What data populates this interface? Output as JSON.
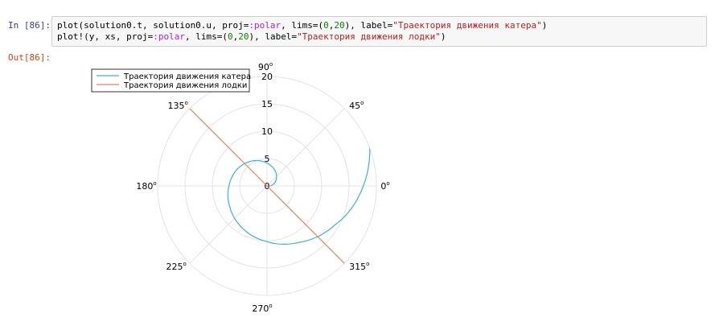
{
  "cell": {
    "in_prompt": "In [86]:",
    "out_prompt": "Out[86]:",
    "code_line1": {
      "a": "plot(solution0.t, solution0.u, proj=",
      "b": ":polar",
      "c": ", lims=(",
      "d": "0",
      "e": ",",
      "f": "20",
      "g": "), label=",
      "h": "\"Траектория движения катера\"",
      "i": ")"
    },
    "code_line2": {
      "a": "plot!(y, xs, proj=",
      "b": ":polar",
      "c": ", lims=(",
      "d": "0",
      "e": ",",
      "f": "20",
      "g": "), label=",
      "h": "\"Траектория движения лодки\"",
      "i": ")"
    }
  },
  "chart_data": {
    "type": "line",
    "projection": "polar",
    "rlim": [
      0,
      20
    ],
    "r_ticks": [
      "0",
      "5",
      "10",
      "15",
      "20"
    ],
    "angle_ticks": [
      "0",
      "45",
      "90",
      "135",
      "180",
      "225",
      "270",
      "315"
    ],
    "angle_unit_symbol": "o",
    "grid": true,
    "legend_position": "top-left",
    "series": [
      {
        "name": "Траектория движения катера",
        "color": "#3db1e0",
        "theta_deg": [
          0,
          30,
          60,
          90,
          120,
          150,
          180,
          210,
          240,
          270,
          300,
          330,
          360,
          390
        ],
        "r": [
          0.56,
          1.85,
          3.08,
          4.17,
          5.3,
          6.25,
          6.96,
          7.83,
          8.93,
          10.17,
          11.89,
          14.3,
          17.6,
          21.2
        ]
      },
      {
        "name": "Траектория движения лодки",
        "color": "#e8826a",
        "theta_deg": [
          135,
          135,
          315,
          315
        ],
        "r": [
          20,
          0,
          0,
          20
        ]
      }
    ]
  }
}
